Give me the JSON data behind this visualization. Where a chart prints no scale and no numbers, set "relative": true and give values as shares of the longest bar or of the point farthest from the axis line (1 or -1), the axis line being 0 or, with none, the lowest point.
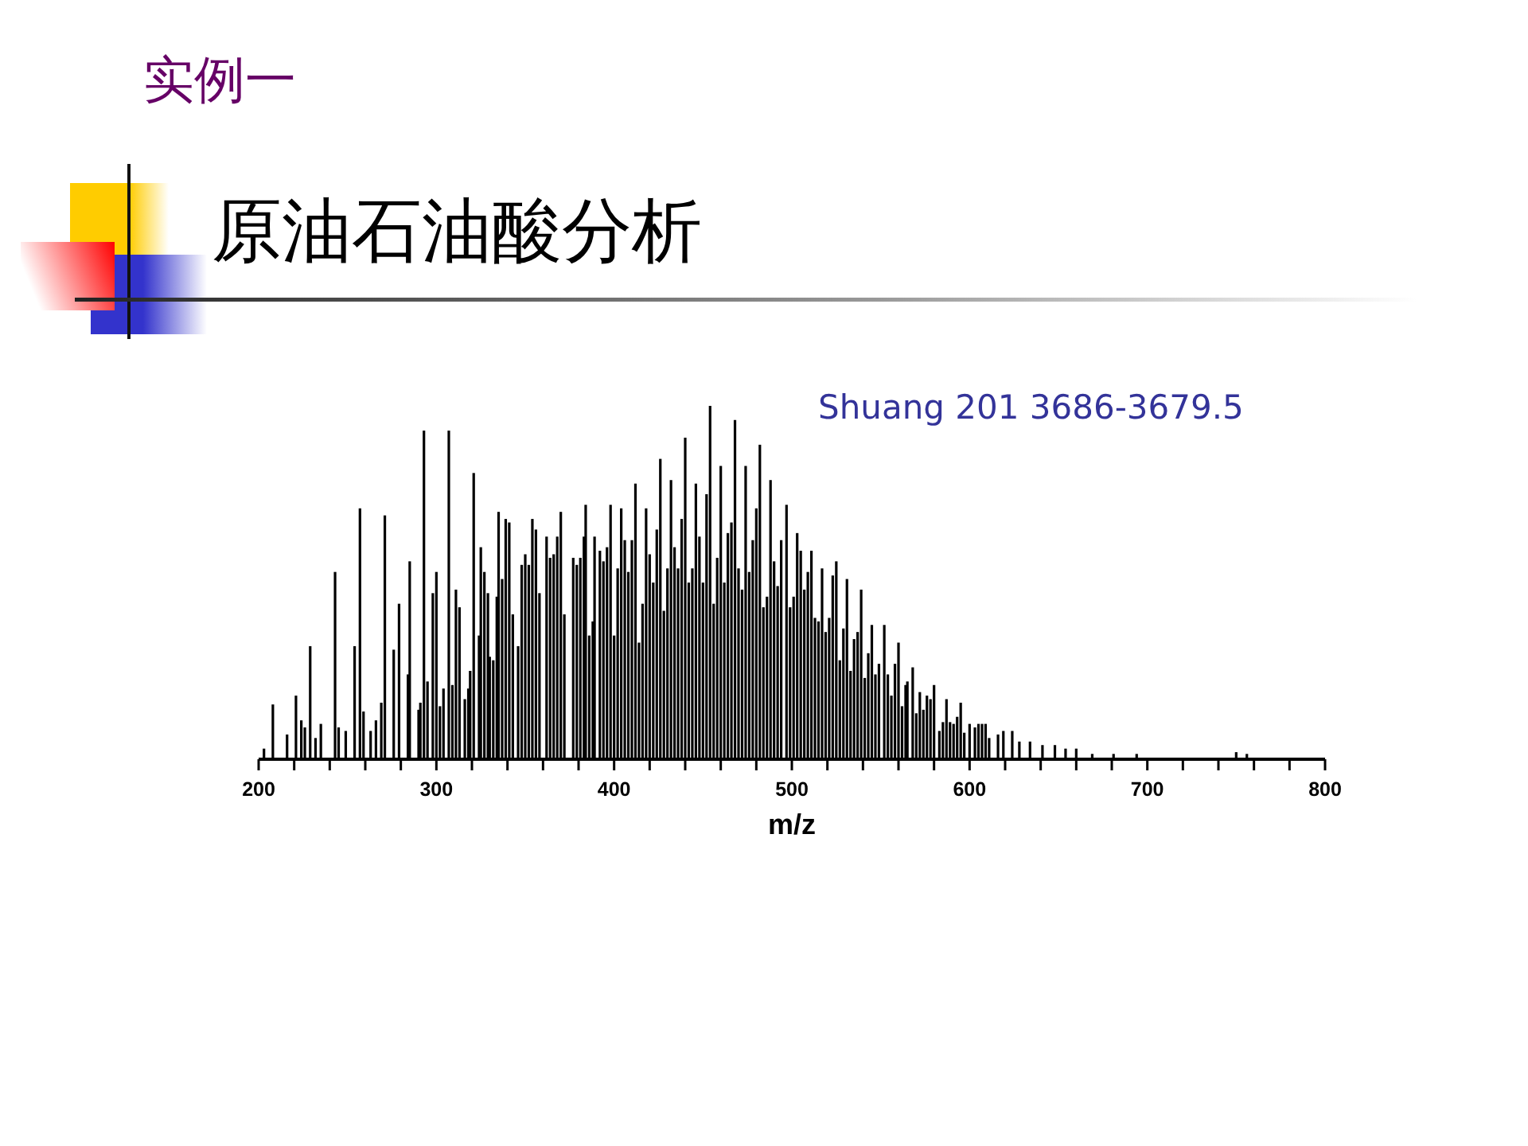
{
  "chart_data": {
    "type": "bar",
    "title": "原油石油酸分析",
    "subtitle": "实例一",
    "xlabel": "m/z",
    "annotations": [
      "Shuang 201 3686-3679.5"
    ],
    "relative": true,
    "color": "#000000",
    "xlim": [
      200,
      800
    ],
    "xticks": [
      200,
      {
        "value": 220,
        "label": null
      },
      {
        "value": 240,
        "label": null
      },
      {
        "value": 260,
        "label": null
      },
      {
        "value": 280,
        "label": null
      },
      300,
      {
        "value": 320,
        "label": null
      },
      {
        "value": 340,
        "label": null
      },
      {
        "value": 360,
        "label": null
      },
      {
        "value": 380,
        "label": null
      },
      400,
      {
        "value": 420,
        "label": null
      },
      {
        "value": 440,
        "label": null
      },
      {
        "value": 460,
        "label": null
      },
      {
        "value": 480,
        "label": null
      },
      500,
      {
        "value": 520,
        "label": null
      },
      {
        "value": 540,
        "label": null
      },
      {
        "value": 560,
        "label": null
      },
      {
        "value": 580,
        "label": null
      },
      600,
      {
        "value": 620,
        "label": null
      },
      {
        "value": 640,
        "label": null
      },
      {
        "value": 660,
        "label": null
      },
      {
        "value": 680,
        "label": null
      },
      700,
      {
        "value": 720,
        "label": null
      },
      {
        "value": 740,
        "label": null
      },
      {
        "value": 760,
        "label": null
      },
      {
        "value": 780,
        "label": null
      },
      800
    ],
    "x": [
      203,
      208,
      216,
      221,
      224,
      226,
      229,
      232,
      235,
      243,
      245,
      249,
      254,
      257,
      259,
      263,
      266,
      269,
      271,
      276,
      279,
      284,
      285,
      290,
      291,
      293,
      295,
      298,
      300,
      302,
      304,
      307,
      309,
      311,
      313,
      316,
      318,
      319,
      321,
      324,
      325,
      327,
      329,
      330,
      332,
      334,
      335,
      337,
      339,
      341,
      343,
      346,
      348,
      350,
      352,
      354,
      356,
      358,
      362,
      364,
      366,
      368,
      370,
      372,
      377,
      379,
      381,
      383,
      384,
      386,
      388,
      389,
      392,
      394,
      396,
      398,
      400,
      402,
      404,
      406,
      408,
      410,
      412,
      414,
      416,
      418,
      420,
      422,
      424,
      426,
      428,
      430,
      432,
      434,
      436,
      438,
      440,
      442,
      444,
      446,
      448,
      450,
      452,
      454,
      456,
      458,
      460,
      462,
      464,
      466,
      468,
      470,
      472,
      474,
      476,
      478,
      480,
      482,
      484,
      486,
      488,
      490,
      492,
      494,
      497,
      499,
      501,
      503,
      505,
      507,
      509,
      511,
      513,
      515,
      517,
      519,
      521,
      523,
      525,
      527,
      529,
      531,
      533,
      535,
      537,
      539,
      541,
      543,
      545,
      547,
      549,
      552,
      554,
      556,
      558,
      560,
      562,
      564,
      565,
      568,
      570,
      572,
      574,
      576,
      578,
      580,
      583,
      585,
      587,
      589,
      591,
      593,
      595,
      597,
      600,
      603,
      605,
      607,
      609,
      611,
      616,
      619,
      624,
      628,
      634,
      641,
      648,
      654,
      660,
      669,
      681,
      694,
      750,
      756
    ],
    "values": [
      0.03,
      0.155,
      0.07,
      0.18,
      0.11,
      0.09,
      0.32,
      0.06,
      0.1,
      0.53,
      0.09,
      0.08,
      0.32,
      0.71,
      0.135,
      0.08,
      0.11,
      0.16,
      0.69,
      0.31,
      0.44,
      0.24,
      0.56,
      0.14,
      0.16,
      0.93,
      0.22,
      0.47,
      0.53,
      0.15,
      0.2,
      0.93,
      0.21,
      0.48,
      0.43,
      0.17,
      0.2,
      0.25,
      0.81,
      0.35,
      0.6,
      0.53,
      0.47,
      0.29,
      0.28,
      0.46,
      0.7,
      0.51,
      0.68,
      0.67,
      0.41,
      0.32,
      0.55,
      0.58,
      0.55,
      0.68,
      0.65,
      0.47,
      0.63,
      0.57,
      0.58,
      0.63,
      0.7,
      0.41,
      0.57,
      0.55,
      0.57,
      0.63,
      0.72,
      0.35,
      0.39,
      0.63,
      0.59,
      0.56,
      0.6,
      0.72,
      0.35,
      0.54,
      0.71,
      0.62,
      0.53,
      0.62,
      0.78,
      0.33,
      0.44,
      0.71,
      0.58,
      0.5,
      0.65,
      0.85,
      0.42,
      0.54,
      0.79,
      0.6,
      0.54,
      0.68,
      0.91,
      0.5,
      0.54,
      0.78,
      0.63,
      0.5,
      0.75,
      1,
      0.44,
      0.57,
      0.83,
      0.5,
      0.64,
      0.67,
      0.96,
      0.54,
      0.48,
      0.83,
      0.53,
      0.62,
      0.71,
      0.89,
      0.43,
      0.46,
      0.79,
      0.56,
      0.49,
      0.62,
      0.72,
      0.43,
      0.46,
      0.64,
      0.59,
      0.48,
      0.53,
      0.59,
      0.4,
      0.39,
      0.54,
      0.36,
      0.4,
      0.52,
      0.56,
      0.28,
      0.37,
      0.51,
      0.25,
      0.34,
      0.36,
      0.48,
      0.23,
      0.3,
      0.38,
      0.24,
      0.27,
      0.38,
      0.24,
      0.18,
      0.27,
      0.33,
      0.15,
      0.21,
      0.22,
      0.26,
      0.13,
      0.19,
      0.14,
      0.18,
      0.17,
      0.21,
      0.08,
      0.105,
      0.17,
      0.105,
      0.1,
      0.12,
      0.16,
      0.075,
      0.1,
      0.09,
      0.1,
      0.1,
      0.1,
      0.06,
      0.07,
      0.08,
      0.08,
      0.05,
      0.05,
      0.04,
      0.04,
      0.03,
      0.03,
      0.015,
      0.015,
      0.015,
      0.02,
      0.015
    ]
  }
}
